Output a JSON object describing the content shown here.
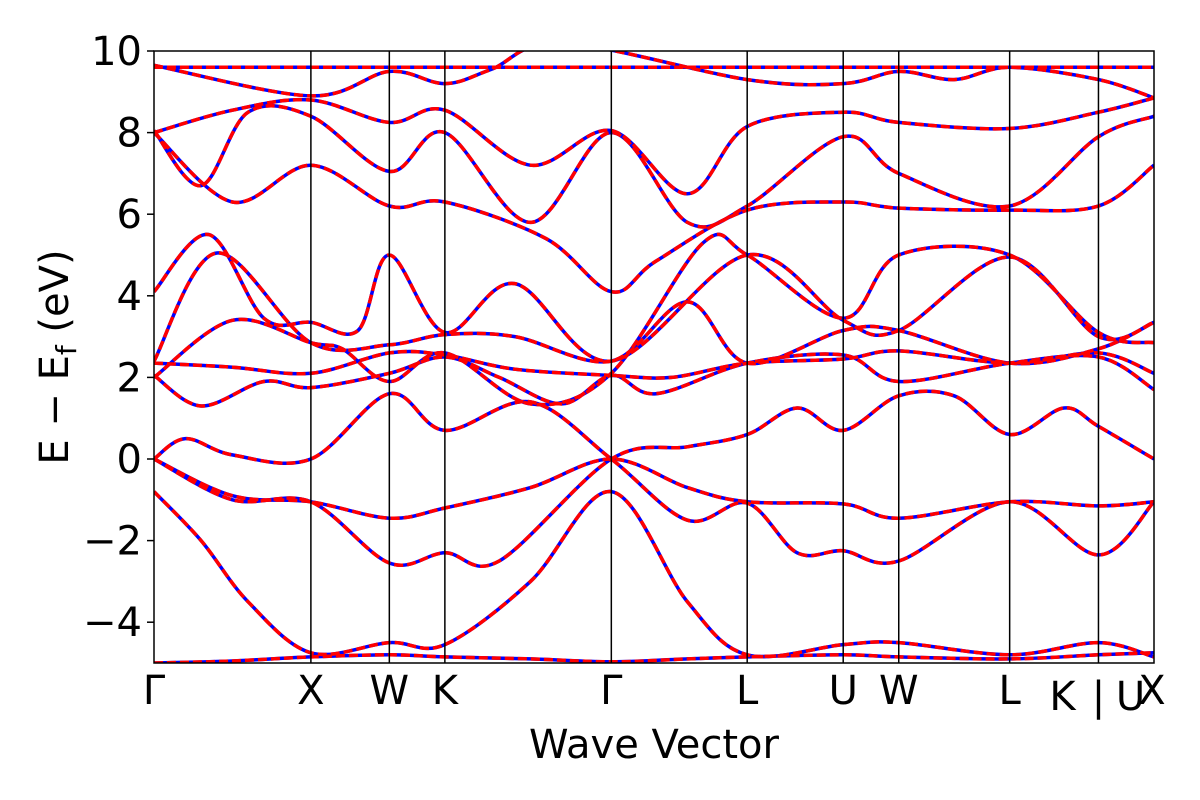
{
  "chart_data": {
    "type": "line",
    "xlabel": "Wave Vector",
    "ylabel": "E − E",
    "ylabel_sub": "f",
    "ylabel_unit": " (eV)",
    "ylim": [
      -5,
      10
    ],
    "yticks": [
      -4,
      -2,
      0,
      2,
      4,
      6,
      8,
      10
    ],
    "ytick_labels": [
      "−4",
      "−2",
      "0",
      "2",
      "4",
      "6",
      "8",
      "10"
    ],
    "kpath_ticks": [
      {
        "k": 0.0,
        "label": "Γ"
      },
      {
        "k": 1.0,
        "label": "X"
      },
      {
        "k": 1.5,
        "label": "W"
      },
      {
        "k": 1.854,
        "label": "K"
      },
      {
        "k": 2.915,
        "label": "Γ"
      },
      {
        "k": 3.781,
        "label": "L"
      },
      {
        "k": 4.393,
        "label": "U"
      },
      {
        "k": 4.747,
        "label": "W"
      },
      {
        "k": 5.454,
        "label": "L"
      },
      {
        "k": 6.02,
        "label": "K"
      },
      {
        "k": 6.02,
        "label": "|"
      },
      {
        "k": 6.02,
        "label": "U"
      },
      {
        "k": 6.374,
        "label": "X"
      }
    ],
    "style": {
      "series_a_color": "#0000ff",
      "series_b_color": "#ff0000",
      "series_b_dash": "dashed"
    },
    "series": [
      {
        "name": "",
        "bands": [
          {
            "k": [
              0,
              0.5,
              1,
              1.5,
              1.854,
              2.4,
              2.915,
              3.4,
              3.781,
              4.393,
              4.747,
              5.454,
              6.02,
              6.374
            ],
            "E": [
              -5.0,
              -4.95,
              -4.85,
              -4.8,
              -4.85,
              -4.9,
              -4.97,
              -4.9,
              -4.85,
              -4.8,
              -4.85,
              -4.9,
              -4.8,
              -4.75
            ]
          },
          {
            "k": [
              0,
              0.3,
              0.6,
              1,
              1.5,
              1.854,
              2.4,
              2.915,
              3.4,
              3.781,
              4.393,
              4.747,
              5.454,
              6.02,
              6.374
            ],
            "E": [
              -0.8,
              -2.0,
              -3.5,
              -4.75,
              -4.5,
              -4.55,
              -3.0,
              -0.8,
              -3.5,
              -4.8,
              -4.55,
              -4.5,
              -4.8,
              -4.5,
              -4.85
            ]
          },
          {
            "k": [
              0,
              0.5,
              1,
              1.5,
              1.854,
              2.4,
              2.915,
              3.4,
              3.781,
              4.393,
              4.747,
              5.454,
              6.02,
              6.374
            ],
            "E": [
              0.0,
              -0.9,
              -1.05,
              -1.45,
              -1.2,
              -0.7,
              0.0,
              -0.7,
              -1.05,
              -1.1,
              -1.45,
              -1.05,
              -1.15,
              -1.05
            ]
          },
          {
            "k": [
              0,
              0.5,
              1,
              1.5,
              1.854,
              2.2,
              2.915,
              3.4,
              3.781,
              4.1,
              4.393,
              4.747,
              5.1,
              5.454,
              5.8,
              6.02,
              6.374
            ],
            "E": [
              0.0,
              -1.0,
              -1.05,
              -2.55,
              -2.3,
              -2.5,
              0.0,
              0.3,
              0.6,
              1.25,
              0.7,
              1.55,
              1.55,
              0.6,
              1.25,
              0.8,
              0.0
            ]
          },
          {
            "k": [
              0,
              0.2,
              0.5,
              1,
              1.5,
              1.854,
              2.4,
              2.915,
              3.4,
              3.781,
              4.1,
              4.393,
              4.747,
              5.454,
              6.02,
              6.374
            ],
            "E": [
              0.0,
              0.5,
              0.1,
              0.0,
              1.6,
              0.7,
              1.4,
              0.0,
              -1.5,
              -1.08,
              -2.3,
              -2.25,
              -2.5,
              -1.05,
              -2.35,
              -1.05
            ]
          },
          {
            "k": [
              0,
              0.3,
              0.7,
              1,
              1.5,
              1.854,
              2.2,
              2.6,
              2.915,
              3.2,
              3.781,
              4.393,
              4.747,
              5.454,
              6.02,
              6.374
            ],
            "E": [
              2.05,
              1.3,
              1.9,
              1.75,
              2.1,
              2.5,
              2.0,
              1.35,
              2.05,
              1.6,
              2.35,
              2.55,
              1.9,
              2.35,
              2.5,
              1.7
            ]
          },
          {
            "k": [
              0,
              0.5,
              1,
              1.5,
              1.854,
              2.3,
              2.915,
              3.3,
              3.781,
              4.393,
              4.747,
              5.454,
              6.02,
              6.374
            ],
            "E": [
              2.35,
              2.25,
              2.1,
              2.6,
              2.55,
              2.2,
              2.05,
              2.0,
              2.35,
              2.45,
              2.65,
              2.35,
              2.6,
              2.1
            ]
          },
          {
            "k": [
              0,
              0.5,
              1,
              1.2,
              1.5,
              1.854,
              2.4,
              2.915,
              3.5,
              3.781,
              4.393,
              4.747,
              5.454,
              6.02,
              6.374
            ],
            "E": [
              2.0,
              3.4,
              2.85,
              2.7,
              1.9,
              2.6,
              1.35,
              2.1,
              5.3,
              5.0,
              3.45,
              5.0,
              5.0,
              3.1,
              2.85
            ]
          },
          {
            "k": [
              0,
              0.4,
              1,
              1.5,
              1.854,
              2.3,
              2.915,
              3.4,
              3.781,
              4.393,
              4.747,
              5.454,
              6.02,
              6.374
            ],
            "E": [
              2.4,
              5.05,
              2.85,
              2.8,
              3.05,
              3.0,
              2.4,
              3.85,
              2.35,
              3.15,
              3.15,
              2.35,
              2.7,
              3.35
            ]
          },
          {
            "k": [
              0,
              0.35,
              0.7,
              1,
              1.3,
              1.5,
              1.854,
              2.3,
              2.915,
              3.781,
              4.393,
              4.747,
              5.454,
              6.02,
              6.374
            ],
            "E": [
              4.1,
              5.5,
              3.45,
              3.35,
              3.15,
              5.0,
              3.1,
              4.3,
              2.4,
              5.0,
              3.4,
              3.15,
              4.95,
              3.0,
              3.35
            ]
          },
          {
            "k": [
              0,
              0.5,
              1,
              1.5,
              1.854,
              2.5,
              2.915,
              3.2,
              3.781,
              4.393,
              4.747,
              5.454,
              6.02,
              6.374
            ],
            "E": [
              8.0,
              6.3,
              7.2,
              6.2,
              6.3,
              5.4,
              4.1,
              4.85,
              6.1,
              6.3,
              6.15,
              6.1,
              6.2,
              7.2
            ]
          },
          {
            "k": [
              0,
              0.3,
              0.6,
              1,
              1.5,
              1.854,
              2.4,
              2.915,
              3.4,
              3.781,
              4.393,
              4.747,
              5.454,
              6.02,
              6.374
            ],
            "E": [
              8.05,
              6.7,
              8.5,
              8.4,
              7.05,
              8.0,
              5.8,
              8.0,
              5.8,
              6.2,
              7.9,
              7.0,
              6.2,
              7.9,
              8.4
            ]
          },
          {
            "k": [
              0,
              0.5,
              1,
              1.5,
              1.854,
              2.4,
              2.915,
              3.4,
              3.781,
              4.393,
              4.747,
              5.454,
              6.02,
              6.374
            ],
            "E": [
              8.0,
              8.55,
              8.8,
              8.25,
              8.55,
              7.2,
              8.05,
              6.5,
              8.15,
              8.5,
              8.25,
              8.1,
              8.5,
              8.85
            ]
          },
          {
            "k": [
              0,
              1,
              1.5,
              1.854,
              2.2,
              2.6,
              2.915,
              3.5,
              3.781,
              4.393,
              4.747,
              5.454,
              6.02,
              6.374
            ],
            "E": [
              9.6,
              9.6,
              9.6,
              9.6,
              9.6,
              9.6,
              9.6,
              9.6,
              9.6,
              9.6,
              9.6,
              9.6,
              9.6,
              9.6
            ]
          },
          {
            "k": [
              0,
              1,
              1.5,
              1.854,
              2.15,
              2.6,
              3.781,
              4.393,
              4.747,
              5.1,
              5.454,
              6.02,
              6.374
            ],
            "E": [
              9.65,
              8.9,
              9.5,
              9.2,
              9.55,
              10.2,
              9.3,
              9.2,
              9.5,
              9.3,
              9.6,
              9.3,
              8.85
            ]
          }
        ]
      },
      {
        "name": "",
        "bands": "same"
      }
    ]
  }
}
